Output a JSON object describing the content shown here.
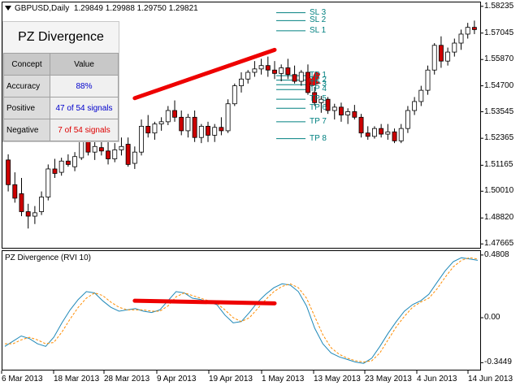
{
  "header": {
    "symbol_tf": "GBPUSD,Daily",
    "ohlc": "1.29849 1.29988 1.29750 1.29821"
  },
  "indicator": {
    "title": "PZ Divergence (RVI 10)"
  },
  "stats_panel": {
    "title": "PZ Divergence",
    "col_concept": "Concept",
    "col_value": "Value",
    "rows": [
      {
        "concept": "Accuracy",
        "value": "88%",
        "color": "#0000cc"
      },
      {
        "concept": "Positive",
        "value": "47 of 54 signals",
        "color": "#0000cc"
      },
      {
        "concept": "Negative",
        "value": "7 of 54 signals",
        "color": "#dd0000"
      }
    ]
  },
  "levels": [
    {
      "label": "SL 3",
      "price": 1.5795
    },
    {
      "label": "SL 2",
      "price": 1.576
    },
    {
      "label": "SL 1",
      "price": 1.5715
    },
    {
      "label": "TP 1",
      "price": 1.5515
    },
    {
      "label": "TP 2",
      "price": 1.5495
    },
    {
      "label": "TP 3",
      "price": 1.5475
    },
    {
      "label": "TP 4",
      "price": 1.5453
    },
    {
      "label": "TP 5",
      "price": 1.541
    },
    {
      "label": "TP 6",
      "price": 1.537
    },
    {
      "label": "TP 7",
      "price": 1.531
    },
    {
      "label": "TP 8",
      "price": 1.5235
    }
  ],
  "price_axis": {
    "labels": [
      "1.58235",
      "1.57045",
      "1.55870",
      "1.54700",
      "1.53545",
      "1.52365",
      "1.51165",
      "1.50010",
      "1.48820",
      "1.47665"
    ],
    "max": 1.583,
    "min": 1.476
  },
  "indicator_axis": {
    "labels": [
      "0.4808",
      "0.00",
      "-0.3449"
    ],
    "max": 0.48,
    "min": -0.38
  },
  "time_axis": {
    "labels": [
      "6 Mar 2013",
      "18 Mar 2013",
      "28 Mar 2013",
      "9 Apr 2013",
      "19 Apr 2013",
      "1 May 2013",
      "13 May 2013",
      "23 May 2013",
      "4 Jun 2013",
      "14 Jun 2013"
    ]
  },
  "colors": {
    "bull_candle": "#ffffff",
    "bear_candle": "#cc0000",
    "level_line": "#008080",
    "divergence_line": "#ee0000",
    "rvi_main": "#1e88b8",
    "rvi_signal": "#ff8c00"
  },
  "chart_data": [
    {
      "type": "candlestick",
      "title": "GBPUSD,Daily",
      "candles": [
        {
          "o": 1.514,
          "h": 1.5165,
          "l": 1.5,
          "c": 1.503
        },
        {
          "o": 1.503,
          "h": 1.5085,
          "l": 1.495,
          "c": 1.497
        },
        {
          "o": 1.499,
          "h": 1.506,
          "l": 1.489,
          "c": 1.491
        },
        {
          "o": 1.491,
          "h": 1.4945,
          "l": 1.4835,
          "c": 1.489
        },
        {
          "o": 1.489,
          "h": 1.4935,
          "l": 1.4855,
          "c": 1.4905
        },
        {
          "o": 1.491,
          "h": 1.5,
          "l": 1.4895,
          "c": 1.4975
        },
        {
          "o": 1.4975,
          "h": 1.512,
          "l": 1.496,
          "c": 1.51
        },
        {
          "o": 1.51,
          "h": 1.5145,
          "l": 1.506,
          "c": 1.508
        },
        {
          "o": 1.5085,
          "h": 1.515,
          "l": 1.507,
          "c": 1.5135
        },
        {
          "o": 1.5135,
          "h": 1.5165,
          "l": 1.511,
          "c": 1.512
        },
        {
          "o": 1.511,
          "h": 1.5175,
          "l": 1.509,
          "c": 1.5155
        },
        {
          "o": 1.515,
          "h": 1.526,
          "l": 1.514,
          "c": 1.523
        },
        {
          "o": 1.523,
          "h": 1.526,
          "l": 1.516,
          "c": 1.5175
        },
        {
          "o": 1.5175,
          "h": 1.522,
          "l": 1.514,
          "c": 1.52
        },
        {
          "o": 1.5195,
          "h": 1.523,
          "l": 1.516,
          "c": 1.518
        },
        {
          "o": 1.518,
          "h": 1.5225,
          "l": 1.512,
          "c": 1.5145
        },
        {
          "o": 1.5145,
          "h": 1.5215,
          "l": 1.513,
          "c": 1.5185
        },
        {
          "o": 1.5185,
          "h": 1.524,
          "l": 1.516,
          "c": 1.52
        },
        {
          "o": 1.521,
          "h": 1.524,
          "l": 1.511,
          "c": 1.512
        },
        {
          "o": 1.5125,
          "h": 1.52,
          "l": 1.51,
          "c": 1.5175
        },
        {
          "o": 1.5175,
          "h": 1.532,
          "l": 1.516,
          "c": 1.529
        },
        {
          "o": 1.529,
          "h": 1.534,
          "l": 1.524,
          "c": 1.526
        },
        {
          "o": 1.526,
          "h": 1.531,
          "l": 1.523,
          "c": 1.53
        },
        {
          "o": 1.53,
          "h": 1.533,
          "l": 1.527,
          "c": 1.531
        },
        {
          "o": 1.531,
          "h": 1.538,
          "l": 1.5295,
          "c": 1.536
        },
        {
          "o": 1.536,
          "h": 1.5405,
          "l": 1.531,
          "c": 1.533
        },
        {
          "o": 1.533,
          "h": 1.536,
          "l": 1.525,
          "c": 1.527
        },
        {
          "o": 1.527,
          "h": 1.5345,
          "l": 1.524,
          "c": 1.533
        },
        {
          "o": 1.533,
          "h": 1.536,
          "l": 1.522,
          "c": 1.524
        },
        {
          "o": 1.524,
          "h": 1.53,
          "l": 1.5215,
          "c": 1.529
        },
        {
          "o": 1.529,
          "h": 1.531,
          "l": 1.522,
          "c": 1.525
        },
        {
          "o": 1.525,
          "h": 1.53,
          "l": 1.522,
          "c": 1.5285
        },
        {
          "o": 1.5285,
          "h": 1.533,
          "l": 1.525,
          "c": 1.527
        },
        {
          "o": 1.527,
          "h": 1.541,
          "l": 1.526,
          "c": 1.539
        },
        {
          "o": 1.539,
          "h": 1.548,
          "l": 1.538,
          "c": 1.547
        },
        {
          "o": 1.547,
          "h": 1.553,
          "l": 1.544,
          "c": 1.55
        },
        {
          "o": 1.55,
          "h": 1.554,
          "l": 1.548,
          "c": 1.553
        },
        {
          "o": 1.553,
          "h": 1.558,
          "l": 1.551,
          "c": 1.5545
        },
        {
          "o": 1.5545,
          "h": 1.559,
          "l": 1.552,
          "c": 1.556
        },
        {
          "o": 1.556,
          "h": 1.56,
          "l": 1.551,
          "c": 1.554
        },
        {
          "o": 1.554,
          "h": 1.558,
          "l": 1.55,
          "c": 1.5525
        },
        {
          "o": 1.5525,
          "h": 1.5565,
          "l": 1.549,
          "c": 1.555
        },
        {
          "o": 1.555,
          "h": 1.559,
          "l": 1.55,
          "c": 1.552
        },
        {
          "o": 1.552,
          "h": 1.556,
          "l": 1.548,
          "c": 1.549
        },
        {
          "o": 1.549,
          "h": 1.554,
          "l": 1.547,
          "c": 1.553
        },
        {
          "o": 1.553,
          "h": 1.5565,
          "l": 1.543,
          "c": 1.544
        },
        {
          "o": 1.544,
          "h": 1.5465,
          "l": 1.538,
          "c": 1.5395
        },
        {
          "o": 1.5395,
          "h": 1.5425,
          "l": 1.535,
          "c": 1.541
        },
        {
          "o": 1.541,
          "h": 1.542,
          "l": 1.5345,
          "c": 1.536
        },
        {
          "o": 1.536,
          "h": 1.539,
          "l": 1.532,
          "c": 1.5375
        },
        {
          "o": 1.5375,
          "h": 1.5395,
          "l": 1.531,
          "c": 1.534
        },
        {
          "o": 1.534,
          "h": 1.537,
          "l": 1.53,
          "c": 1.5355
        },
        {
          "o": 1.5355,
          "h": 1.5385,
          "l": 1.532,
          "c": 1.533
        },
        {
          "o": 1.533,
          "h": 1.5345,
          "l": 1.524,
          "c": 1.526
        },
        {
          "o": 1.526,
          "h": 1.529,
          "l": 1.523,
          "c": 1.5245
        },
        {
          "o": 1.5245,
          "h": 1.529,
          "l": 1.5235,
          "c": 1.528
        },
        {
          "o": 1.528,
          "h": 1.53,
          "l": 1.524,
          "c": 1.5255
        },
        {
          "o": 1.5255,
          "h": 1.53,
          "l": 1.523,
          "c": 1.5265
        },
        {
          "o": 1.5265,
          "h": 1.528,
          "l": 1.5215,
          "c": 1.5225
        },
        {
          "o": 1.5225,
          "h": 1.53,
          "l": 1.5215,
          "c": 1.528
        },
        {
          "o": 1.528,
          "h": 1.538,
          "l": 1.526,
          "c": 1.536
        },
        {
          "o": 1.536,
          "h": 1.542,
          "l": 1.534,
          "c": 1.54
        },
        {
          "o": 1.54,
          "h": 1.547,
          "l": 1.538,
          "c": 1.545
        },
        {
          "o": 1.545,
          "h": 1.556,
          "l": 1.543,
          "c": 1.554
        },
        {
          "o": 1.554,
          "h": 1.566,
          "l": 1.552,
          "c": 1.565
        },
        {
          "o": 1.565,
          "h": 1.569,
          "l": 1.555,
          "c": 1.558
        },
        {
          "o": 1.558,
          "h": 1.564,
          "l": 1.556,
          "c": 1.562
        },
        {
          "o": 1.562,
          "h": 1.568,
          "l": 1.56,
          "c": 1.566
        },
        {
          "o": 1.566,
          "h": 1.572,
          "l": 1.563,
          "c": 1.57
        },
        {
          "o": 1.57,
          "h": 1.575,
          "l": 1.568,
          "c": 1.573
        },
        {
          "o": 1.573,
          "h": 1.576,
          "l": 1.57,
          "c": 1.572
        }
      ],
      "divergence_line": {
        "from_index": 19,
        "from_price": 1.5415,
        "to_index": 40,
        "to_price": 1.563
      },
      "sell_arrow_index": 46
    },
    {
      "type": "line",
      "title": "PZ Divergence (RVI 10)",
      "ylim": [
        -0.38,
        0.48
      ],
      "series": [
        {
          "values": [
            -0.22,
            -0.18,
            -0.14,
            -0.16,
            -0.2,
            -0.22,
            -0.15,
            -0.04,
            0.06,
            0.14,
            0.2,
            0.19,
            0.13,
            0.08,
            0.05,
            0.06,
            0.07,
            0.05,
            0.04,
            0.06,
            0.13,
            0.2,
            0.19,
            0.15,
            0.14,
            0.12,
            0.1,
            0.02,
            -0.04,
            -0.03,
            0.04,
            0.12,
            0.18,
            0.23,
            0.26,
            0.25,
            0.2,
            0.09,
            -0.08,
            -0.2,
            -0.27,
            -0.3,
            -0.32,
            -0.34,
            -0.35,
            -0.31,
            -0.22,
            -0.12,
            -0.03,
            0.05,
            0.1,
            0.13,
            0.18,
            0.27,
            0.36,
            0.43,
            0.46,
            0.45,
            0.44
          ]
        },
        {
          "values": [
            -0.2,
            -0.2,
            -0.17,
            -0.15,
            -0.17,
            -0.2,
            -0.19,
            -0.11,
            -0.01,
            0.08,
            0.15,
            0.19,
            0.17,
            0.12,
            0.08,
            0.06,
            0.06,
            0.06,
            0.05,
            0.05,
            0.09,
            0.16,
            0.19,
            0.17,
            0.15,
            0.13,
            0.11,
            0.06,
            0.0,
            -0.03,
            0.0,
            0.07,
            0.14,
            0.2,
            0.24,
            0.26,
            0.23,
            0.15,
            0.01,
            -0.13,
            -0.23,
            -0.28,
            -0.31,
            -0.33,
            -0.34,
            -0.33,
            -0.27,
            -0.17,
            -0.07,
            0.01,
            0.08,
            0.12,
            0.15,
            0.22,
            0.31,
            0.39,
            0.44,
            0.46,
            0.45
          ]
        }
      ],
      "divergence_line": {
        "from_value": 0.13,
        "to_value": 0.11
      }
    }
  ]
}
